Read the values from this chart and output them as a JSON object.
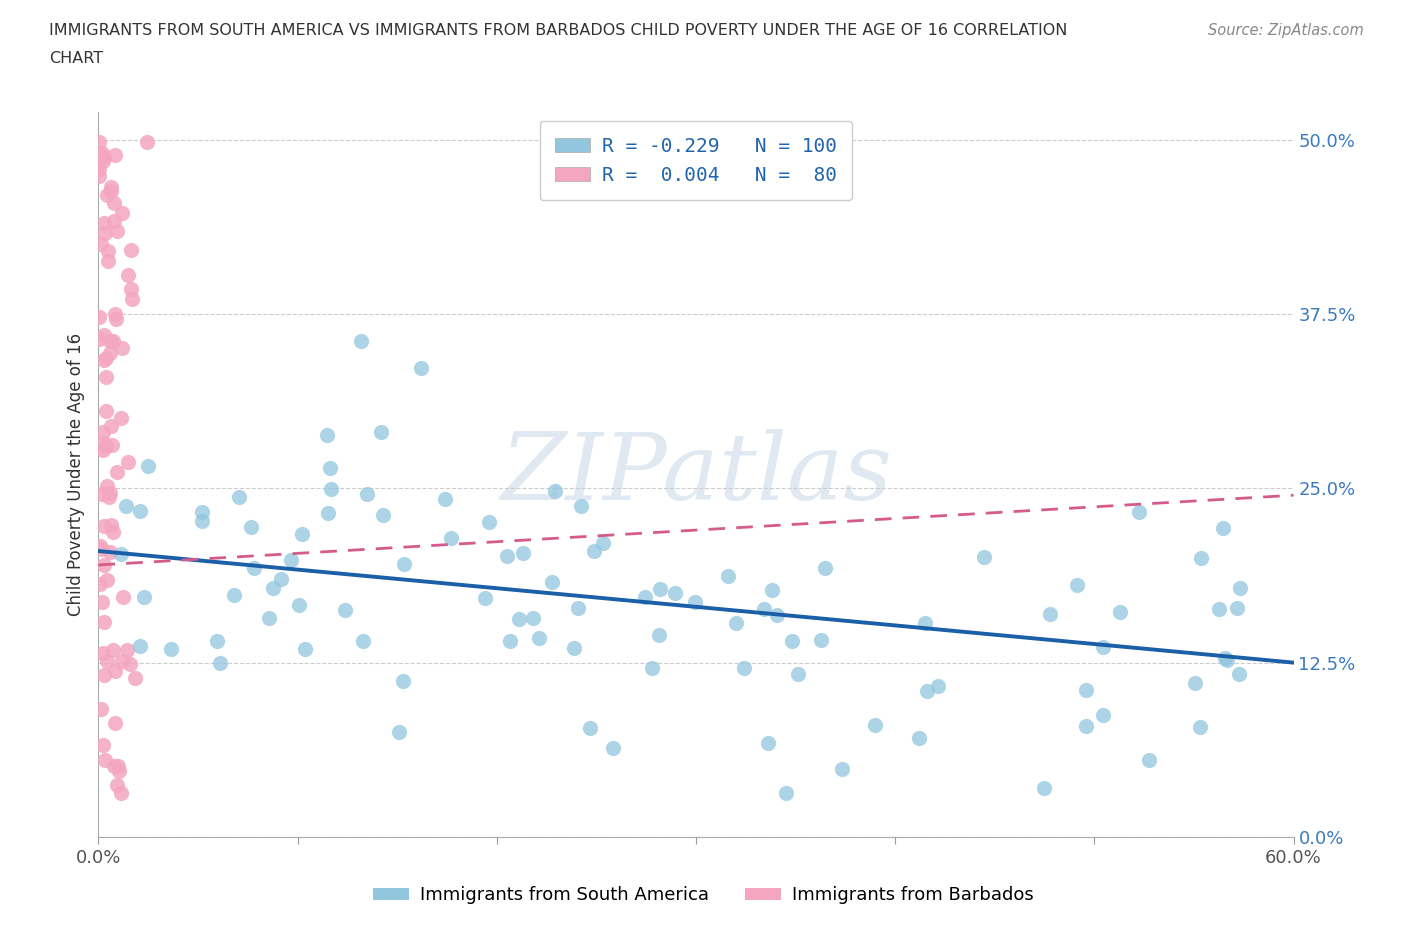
{
  "title_line1": "IMMIGRANTS FROM SOUTH AMERICA VS IMMIGRANTS FROM BARBADOS CHILD POVERTY UNDER THE AGE OF 16 CORRELATION",
  "title_line2": "CHART",
  "source": "Source: ZipAtlas.com",
  "ylabel": "Child Poverty Under the Age of 16",
  "xlim": [
    0.0,
    0.6
  ],
  "ylim": [
    0.0,
    0.52
  ],
  "yticks": [
    0.0,
    0.125,
    0.25,
    0.375,
    0.5
  ],
  "ytick_labels": [
    "0.0%",
    "12.5%",
    "25.0%",
    "37.5%",
    "50.0%"
  ],
  "xtick_labels": [
    "0.0%",
    "",
    "",
    "",
    "",
    "",
    "60.0%"
  ],
  "blue_R": -0.229,
  "blue_N": 100,
  "pink_R": 0.004,
  "pink_N": 80,
  "blue_color": "#92c5de",
  "pink_color": "#f4a6c0",
  "blue_line_color": "#1a5fa8",
  "pink_line_color": "#d45c8a",
  "watermark": "ZIPatlas",
  "legend_label_blue": "Immigrants from South America",
  "legend_label_pink": "Immigrants from Barbados",
  "background_color": "#ffffff",
  "grid_color": "#cccccc",
  "blue_line_start_y": 0.205,
  "blue_line_end_y": 0.125,
  "pink_line_start_y": 0.195,
  "pink_line_end_y": 0.245,
  "seed": 42
}
